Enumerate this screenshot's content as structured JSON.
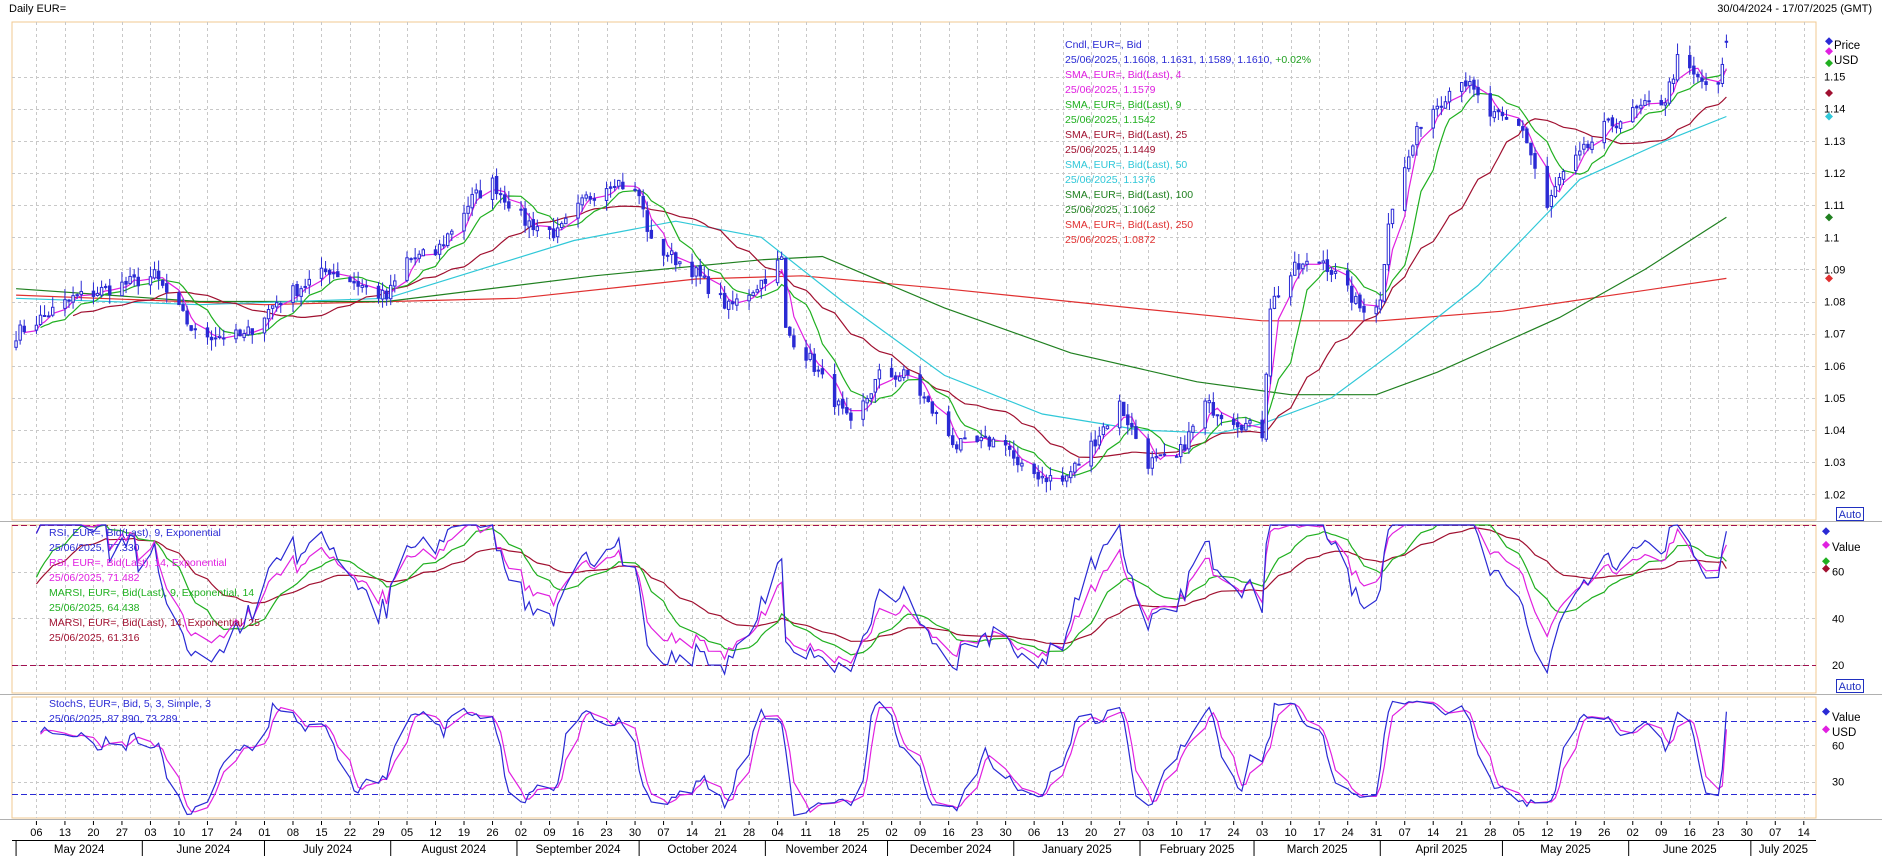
{
  "header": {
    "title": "Daily EUR=",
    "date_range": "30/04/2024 - 17/07/2025 (GMT)"
  },
  "colors": {
    "candle": "#2a2ad4",
    "sma4": "#e020e0",
    "sma9": "#20b020",
    "sma25": "#a01030",
    "sma50": "#30c8d8",
    "sma100": "#208020",
    "sma250": "#e03030",
    "rsi9": "#2a2ad4",
    "rsi14": "#e020e0",
    "marsi9": "#20b020",
    "marsi14": "#a01030",
    "stoch_k": "#2a2ad4",
    "stoch_d": "#e020e0",
    "ref_rsi": "#a01050",
    "ref_stoch": "#2a2ad4",
    "grid": "#c8c8c8",
    "header_bg": "#fff3dc"
  },
  "price_legend": [
    {
      "text": "Cndl, EUR=, Bid",
      "color": "#2a2ad4"
    },
    {
      "text": "25/06/2025, 1.1608, 1.1631, 1.1589, 1.1610, +0.02%",
      "color": "#2a2ad4",
      "extra": "+0.02%",
      "extra_color": "#20a020"
    },
    {
      "text": "SMA, EUR=, Bid(Last), 4",
      "color": "#e020e0"
    },
    {
      "text": "25/06/2025, 1.1579",
      "color": "#e020e0"
    },
    {
      "text": "SMA, EUR=, Bid(Last), 9",
      "color": "#20b020"
    },
    {
      "text": "25/06/2025, 1.1542",
      "color": "#20b020"
    },
    {
      "text": "SMA, EUR=, Bid(Last), 25",
      "color": "#a01030"
    },
    {
      "text": "25/06/2025, 1.1449",
      "color": "#a01030"
    },
    {
      "text": "SMA, EUR=, Bid(Last), 50",
      "color": "#30c8d8"
    },
    {
      "text": "25/06/2025, 1.1376",
      "color": "#30c8d8"
    },
    {
      "text": "SMA, EUR=, Bid(Last), 100",
      "color": "#208020"
    },
    {
      "text": "25/06/2025, 1.1062",
      "color": "#208020"
    },
    {
      "text": "SMA, EUR=, Bid(Last), 250",
      "color": "#e03030"
    },
    {
      "text": "25/06/2025, 1.0872",
      "color": "#e03030"
    }
  ],
  "rsi_legend": [
    {
      "text": "RSI, EUR=, Bid(Last), 9, Exponential",
      "color": "#2a2ad4"
    },
    {
      "text": "25/06/2025, 77.330",
      "color": "#2a2ad4"
    },
    {
      "text": "RSI, EUR=, Bid(Last), 14, Exponential",
      "color": "#e020e0"
    },
    {
      "text": "25/06/2025, 71.482",
      "color": "#e020e0"
    },
    {
      "text": "MARSI, EUR=, Bid(Last), 9, Exponential, 14",
      "color": "#20b020"
    },
    {
      "text": "25/06/2025, 64.438",
      "color": "#20b020"
    },
    {
      "text": "MARSI, EUR=, Bid(Last), 14, Exponential, 25",
      "color": "#a01030"
    },
    {
      "text": "25/06/2025, 61.316",
      "color": "#a01030"
    }
  ],
  "stoch_legend": [
    {
      "text": "StochS, EUR=, Bid, 5, 3, Simple, 3",
      "color": "#2a2ad4"
    },
    {
      "text": "25/06/2025, 87.890, 73.289",
      "color": "#2a2ad4"
    }
  ],
  "axis_labels": {
    "price_title": "Price",
    "price_unit": "USD",
    "rsi_title": "Value",
    "stoch_title": "Value",
    "stoch_unit": "USD",
    "auto": "Auto"
  },
  "chart_data": [
    {
      "type": "candlestick",
      "panel": "price",
      "title": "Daily EUR=",
      "ylim": [
        1.012,
        1.167
      ],
      "yticks": [
        "1.02",
        "1.03",
        "1.04",
        "1.05",
        "1.06",
        "1.07",
        "1.08",
        "1.09",
        "1.1",
        "1.11",
        "1.12",
        "1.13",
        "1.14",
        "1.15"
      ],
      "ytick_values": [
        1.02,
        1.03,
        1.04,
        1.05,
        1.06,
        1.07,
        1.08,
        1.09,
        1.1,
        1.11,
        1.12,
        1.13,
        1.14,
        1.15
      ],
      "close_path": [
        [
          "2024-05-01",
          1.07
        ],
        [
          "2024-05-15",
          1.081
        ],
        [
          "2024-06-04",
          1.088
        ],
        [
          "2024-06-14",
          1.07
        ],
        [
          "2024-06-26",
          1.069
        ],
        [
          "2024-07-04",
          1.08
        ],
        [
          "2024-07-17",
          1.09
        ],
        [
          "2024-07-31",
          1.081
        ],
        [
          "2024-08-05",
          1.093
        ],
        [
          "2024-08-12",
          1.095
        ],
        [
          "2024-08-21",
          1.112
        ],
        [
          "2024-08-26",
          1.117
        ],
        [
          "2024-09-03",
          1.105
        ],
        [
          "2024-09-11",
          1.101
        ],
        [
          "2024-09-18",
          1.112
        ],
        [
          "2024-09-25",
          1.118
        ],
        [
          "2024-10-01",
          1.113
        ],
        [
          "2024-10-04",
          1.098
        ],
        [
          "2024-10-14",
          1.09
        ],
        [
          "2024-10-23",
          1.078
        ],
        [
          "2024-10-30",
          1.085
        ],
        [
          "2024-11-05",
          1.093
        ],
        [
          "2024-11-06",
          1.071
        ],
        [
          "2024-11-12",
          1.062
        ],
        [
          "2024-11-22",
          1.041
        ],
        [
          "2024-11-29",
          1.057
        ],
        [
          "2024-12-06",
          1.057
        ],
        [
          "2024-12-18",
          1.035
        ],
        [
          "2024-12-30",
          1.037
        ],
        [
          "2025-01-02",
          1.028
        ],
        [
          "2025-01-13",
          1.024
        ],
        [
          "2025-01-17",
          1.03
        ],
        [
          "2025-01-27",
          1.048
        ],
        [
          "2025-02-03",
          1.03
        ],
        [
          "2025-02-10",
          1.031
        ],
        [
          "2025-02-17",
          1.048
        ],
        [
          "2025-03-03",
          1.039
        ],
        [
          "2025-03-05",
          1.079
        ],
        [
          "2025-03-11",
          1.09
        ],
        [
          "2025-03-18",
          1.093
        ],
        [
          "2025-03-27",
          1.078
        ],
        [
          "2025-04-01",
          1.08
        ],
        [
          "2025-04-03",
          1.106
        ],
        [
          "2025-04-11",
          1.136
        ],
        [
          "2025-04-21",
          1.15
        ],
        [
          "2025-04-28",
          1.138
        ],
        [
          "2025-05-06",
          1.134
        ],
        [
          "2025-05-12",
          1.109
        ],
        [
          "2025-05-15",
          1.118
        ],
        [
          "2025-05-26",
          1.134
        ],
        [
          "2025-06-04",
          1.14
        ],
        [
          "2025-06-10",
          1.143
        ],
        [
          "2025-06-13",
          1.155
        ],
        [
          "2025-06-18",
          1.149
        ],
        [
          "2025-06-23",
          1.146
        ],
        [
          "2025-06-25",
          1.161
        ]
      ],
      "last_candle": {
        "date": "25/06/2025",
        "open": 1.1608,
        "high": 1.1631,
        "low": 1.1589,
        "close": 1.161,
        "change": "+0.02%"
      },
      "series": [
        {
          "name": "SMA 4",
          "last": 1.1579
        },
        {
          "name": "SMA 9",
          "last": 1.1542
        },
        {
          "name": "SMA 25",
          "last": 1.1449
        },
        {
          "name": "SMA 50",
          "last": 1.1376,
          "points": [
            [
              "2024-05-01",
              1.081
            ],
            [
              "2024-06-15",
              1.079
            ],
            [
              "2024-07-31",
              1.081
            ],
            [
              "2024-09-15",
              1.099
            ],
            [
              "2024-10-10",
              1.105
            ],
            [
              "2024-10-31",
              1.1
            ],
            [
              "2024-11-20",
              1.08
            ],
            [
              "2024-12-15",
              1.057
            ],
            [
              "2025-01-08",
              1.045
            ],
            [
              "2025-02-01",
              1.04
            ],
            [
              "2025-02-20",
              1.039
            ],
            [
              "2025-03-03",
              1.042
            ],
            [
              "2025-03-20",
              1.05
            ],
            [
              "2025-04-05",
              1.065
            ],
            [
              "2025-04-25",
              1.085
            ],
            [
              "2025-05-20",
              1.118
            ],
            [
              "2025-06-10",
              1.13
            ],
            [
              "2025-06-25",
              1.1376
            ]
          ]
        },
        {
          "name": "SMA 100",
          "last": 1.1062,
          "points": [
            [
              "2024-05-01",
              1.084
            ],
            [
              "2024-06-15",
              1.08
            ],
            [
              "2024-07-31",
              1.08
            ],
            [
              "2024-09-20",
              1.088
            ],
            [
              "2024-10-31",
              1.093
            ],
            [
              "2024-11-15",
              1.094
            ],
            [
              "2024-12-15",
              1.078
            ],
            [
              "2025-01-15",
              1.064
            ],
            [
              "2025-02-15",
              1.055
            ],
            [
              "2025-03-10",
              1.051
            ],
            [
              "2025-03-31",
              1.051
            ],
            [
              "2025-04-15",
              1.058
            ],
            [
              "2025-05-15",
              1.075
            ],
            [
              "2025-06-05",
              1.09
            ],
            [
              "2025-06-25",
              1.1062
            ]
          ]
        },
        {
          "name": "SMA 250",
          "last": 1.0872,
          "points": [
            [
              "2024-05-01",
              1.082
            ],
            [
              "2024-07-01",
              1.079
            ],
            [
              "2024-09-01",
              1.081
            ],
            [
              "2024-10-15",
              1.087
            ],
            [
              "2024-11-10",
              1.088
            ],
            [
              "2024-12-15",
              1.084
            ],
            [
              "2025-01-30",
              1.078
            ],
            [
              "2025-03-03",
              1.074
            ],
            [
              "2025-04-01",
              1.074
            ],
            [
              "2025-05-01",
              1.077
            ],
            [
              "2025-06-25",
              1.0872
            ]
          ]
        }
      ]
    },
    {
      "type": "line",
      "panel": "rsi",
      "ylim": [
        8,
        80
      ],
      "yticks": [
        "20",
        "40",
        "60"
      ],
      "ytick_values": [
        20,
        40,
        60
      ],
      "reference_lines": [
        20,
        80
      ],
      "series": [
        {
          "name": "RSI 9 Exponential",
          "last": 77.33
        },
        {
          "name": "RSI 14 Exponential",
          "last": 71.482
        },
        {
          "name": "MARSI 9 Exponential 14",
          "last": 64.438
        },
        {
          "name": "MARSI 14 Exponential 25",
          "last": 61.316
        }
      ]
    },
    {
      "type": "line",
      "panel": "stochastic",
      "ylim": [
        0,
        100
      ],
      "yticks": [
        "30",
        "60"
      ],
      "ytick_values": [
        30,
        60
      ],
      "reference_lines": [
        20,
        80
      ],
      "series": [
        {
          "name": "StochS %K",
          "last": 87.89
        },
        {
          "name": "StochS %D",
          "last": 73.289
        }
      ]
    }
  ],
  "x_axis": {
    "day_ticks": [
      [
        "2024-05-06",
        "06"
      ],
      [
        "2024-05-13",
        "13"
      ],
      [
        "2024-05-20",
        "20"
      ],
      [
        "2024-05-27",
        "27"
      ],
      [
        "2024-06-03",
        "03"
      ],
      [
        "2024-06-10",
        "10"
      ],
      [
        "2024-06-17",
        "17"
      ],
      [
        "2024-06-24",
        "24"
      ],
      [
        "2024-07-01",
        "01"
      ],
      [
        "2024-07-08",
        "08"
      ],
      [
        "2024-07-15",
        "15"
      ],
      [
        "2024-07-22",
        "22"
      ],
      [
        "2024-07-29",
        "29"
      ],
      [
        "2024-08-05",
        "05"
      ],
      [
        "2024-08-12",
        "12"
      ],
      [
        "2024-08-19",
        "19"
      ],
      [
        "2024-08-26",
        "26"
      ],
      [
        "2024-09-02",
        "02"
      ],
      [
        "2024-09-09",
        "09"
      ],
      [
        "2024-09-16",
        "16"
      ],
      [
        "2024-09-23",
        "23"
      ],
      [
        "2024-09-30",
        "30"
      ],
      [
        "2024-10-07",
        "07"
      ],
      [
        "2024-10-14",
        "14"
      ],
      [
        "2024-10-21",
        "21"
      ],
      [
        "2024-10-28",
        "28"
      ],
      [
        "2024-11-04",
        "04"
      ],
      [
        "2024-11-11",
        "11"
      ],
      [
        "2024-11-18",
        "18"
      ],
      [
        "2024-11-25",
        "25"
      ],
      [
        "2024-12-02",
        "02"
      ],
      [
        "2024-12-09",
        "09"
      ],
      [
        "2024-12-16",
        "16"
      ],
      [
        "2024-12-23",
        "23"
      ],
      [
        "2024-12-30",
        "30"
      ],
      [
        "2025-01-06",
        "06"
      ],
      [
        "2025-01-13",
        "13"
      ],
      [
        "2025-01-20",
        "20"
      ],
      [
        "2025-01-27",
        "27"
      ],
      [
        "2025-02-03",
        "03"
      ],
      [
        "2025-02-10",
        "10"
      ],
      [
        "2025-02-17",
        "17"
      ],
      [
        "2025-02-24",
        "24"
      ],
      [
        "2025-03-03",
        "03"
      ],
      [
        "2025-03-10",
        "10"
      ],
      [
        "2025-03-17",
        "17"
      ],
      [
        "2025-03-24",
        "24"
      ],
      [
        "2025-03-31",
        "31"
      ],
      [
        "2025-04-07",
        "07"
      ],
      [
        "2025-04-14",
        "14"
      ],
      [
        "2025-04-21",
        "21"
      ],
      [
        "2025-04-28",
        "28"
      ],
      [
        "2025-05-05",
        "05"
      ],
      [
        "2025-05-12",
        "12"
      ],
      [
        "2025-05-19",
        "19"
      ],
      [
        "2025-05-26",
        "26"
      ],
      [
        "2025-06-02",
        "02"
      ],
      [
        "2025-06-09",
        "09"
      ],
      [
        "2025-06-16",
        "16"
      ],
      [
        "2025-06-23",
        "23"
      ],
      [
        "2025-06-30",
        "30"
      ],
      [
        "2025-07-07",
        "07"
      ],
      [
        "2025-07-14",
        "14"
      ]
    ],
    "month_ticks": [
      [
        "2024-05-01",
        "2024-05-31",
        "May 2024"
      ],
      [
        "2024-06-01",
        "2024-06-30",
        "June 2024"
      ],
      [
        "2024-07-01",
        "2024-07-31",
        "July 2024"
      ],
      [
        "2024-08-01",
        "2024-08-31",
        "August 2024"
      ],
      [
        "2024-09-01",
        "2024-09-30",
        "September 2024"
      ],
      [
        "2024-10-01",
        "2024-10-31",
        "October 2024"
      ],
      [
        "2024-11-01",
        "2024-11-30",
        "November 2024"
      ],
      [
        "2024-12-01",
        "2024-12-31",
        "December 2024"
      ],
      [
        "2025-01-01",
        "2025-01-31",
        "January 2025"
      ],
      [
        "2025-02-01",
        "2025-02-28",
        "February 2025"
      ],
      [
        "2025-03-01",
        "2025-03-31",
        "March 2025"
      ],
      [
        "2025-04-01",
        "2025-04-30",
        "April 2025"
      ],
      [
        "2025-05-01",
        "2025-05-31",
        "May 2025"
      ],
      [
        "2025-06-01",
        "2025-06-30",
        "June 2025"
      ],
      [
        "2025-07-01",
        "2025-07-31",
        "July 2025"
      ]
    ],
    "start": "2024-04-30",
    "end": "2025-07-17"
  }
}
